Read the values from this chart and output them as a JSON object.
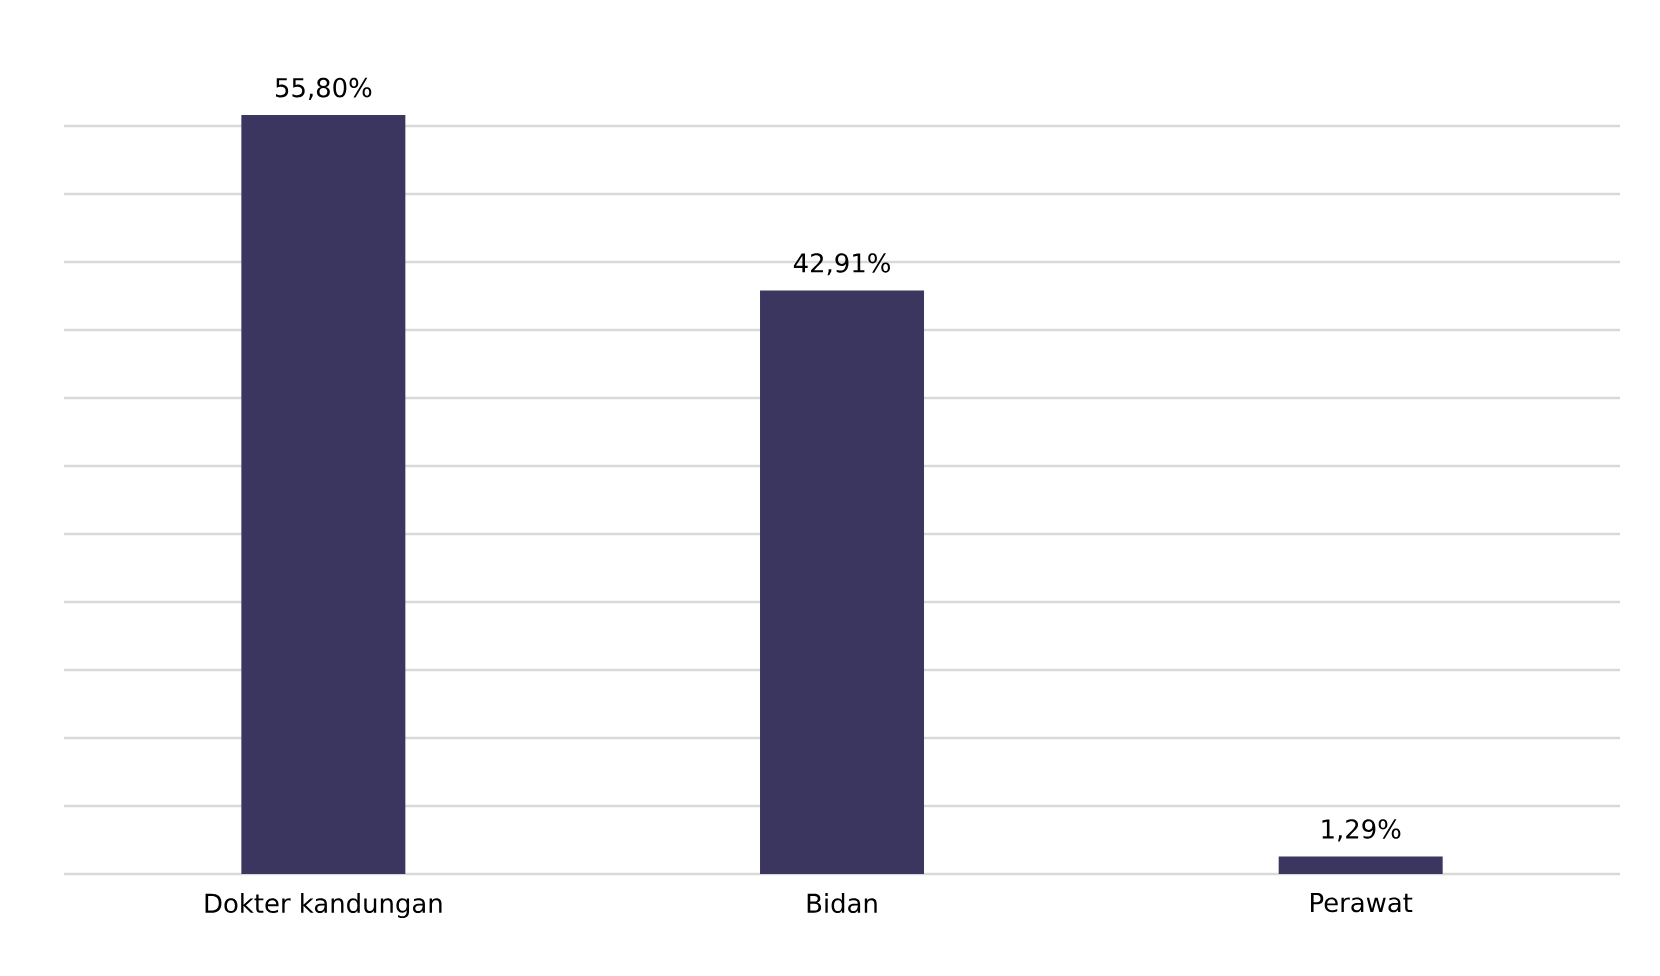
{
  "chart_data": {
    "type": "bar",
    "categories": [
      "Dokter kandungan",
      "Bidan",
      "Perawat"
    ],
    "values": [
      55.8,
      42.91,
      1.29
    ],
    "value_labels": [
      "55,80%",
      "42,91%",
      "1,29%"
    ],
    "color": "#3b3660",
    "tick_labels": "x",
    "grid": "y"
  }
}
